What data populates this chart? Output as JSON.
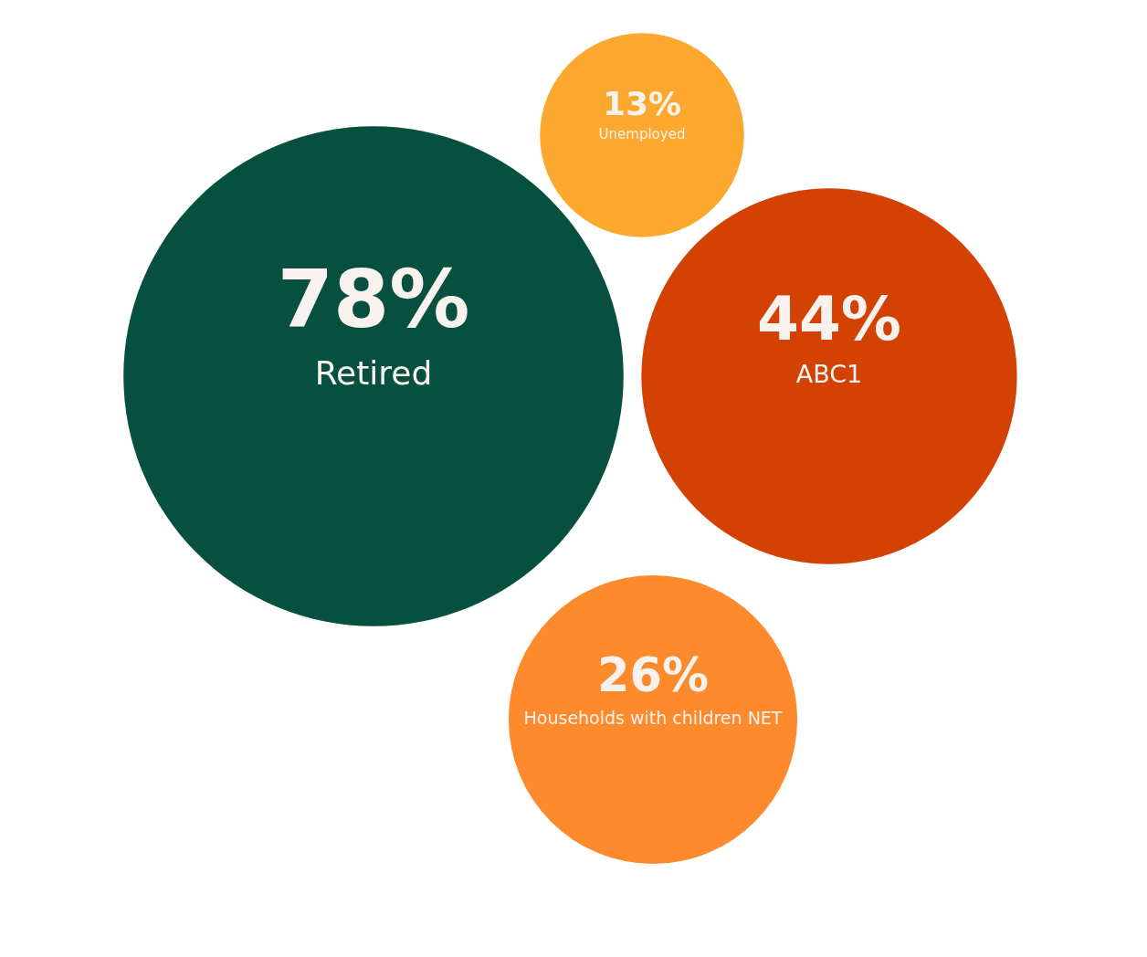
{
  "chart_data": {
    "type": "other",
    "categories": [
      "Retired",
      "Unemployed",
      "ABC1",
      "Households with children NET"
    ],
    "values": [
      78,
      13,
      44,
      26
    ],
    "value_labels": [
      "78%",
      "13%",
      "44%",
      "26%"
    ],
    "colors": [
      "#07503f",
      "#fca82e",
      "#d44203",
      "#fe8a2e"
    ]
  }
}
